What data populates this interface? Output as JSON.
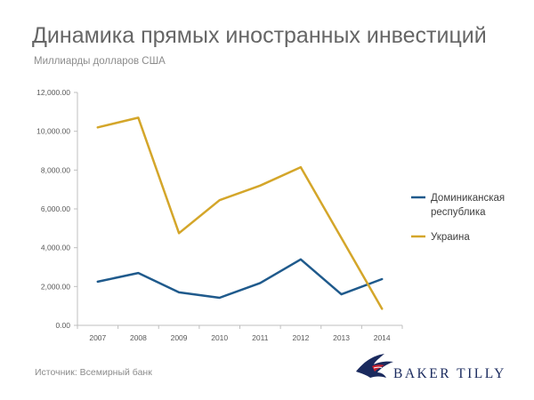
{
  "chart_data": {
    "type": "line",
    "title": "Динамика прямых иностранных инвестиций",
    "subtitle": "Миллиарды долларов США",
    "categories": [
      "2007",
      "2008",
      "2009",
      "2010",
      "2011",
      "2012",
      "2013",
      "2014"
    ],
    "y_ticks": [
      "0.00",
      "2,000.00",
      "4,000.00",
      "6,000.00",
      "8,000.00",
      "10,000.00",
      "12,000.00"
    ],
    "ylim": [
      0,
      12000
    ],
    "grid": false,
    "legend_position": "right",
    "series": [
      {
        "name": "Доминиканская республика",
        "name_lines": [
          "Доминиканская",
          "республика"
        ],
        "color": "#1f5a8c",
        "values": [
          2250,
          2700,
          1700,
          1420,
          2180,
          3400,
          1600,
          2380
        ]
      },
      {
        "name": "Украина",
        "name_lines": [
          "Украина"
        ],
        "color": "#d4a62a",
        "values": [
          10200,
          10700,
          4750,
          6450,
          7200,
          8150,
          4500,
          850
        ]
      }
    ]
  },
  "footer": {
    "source": "Источник: Всемирный банк",
    "logo_text": "BAKER TILLY",
    "logo_icon": "eagle-logo-icon"
  }
}
